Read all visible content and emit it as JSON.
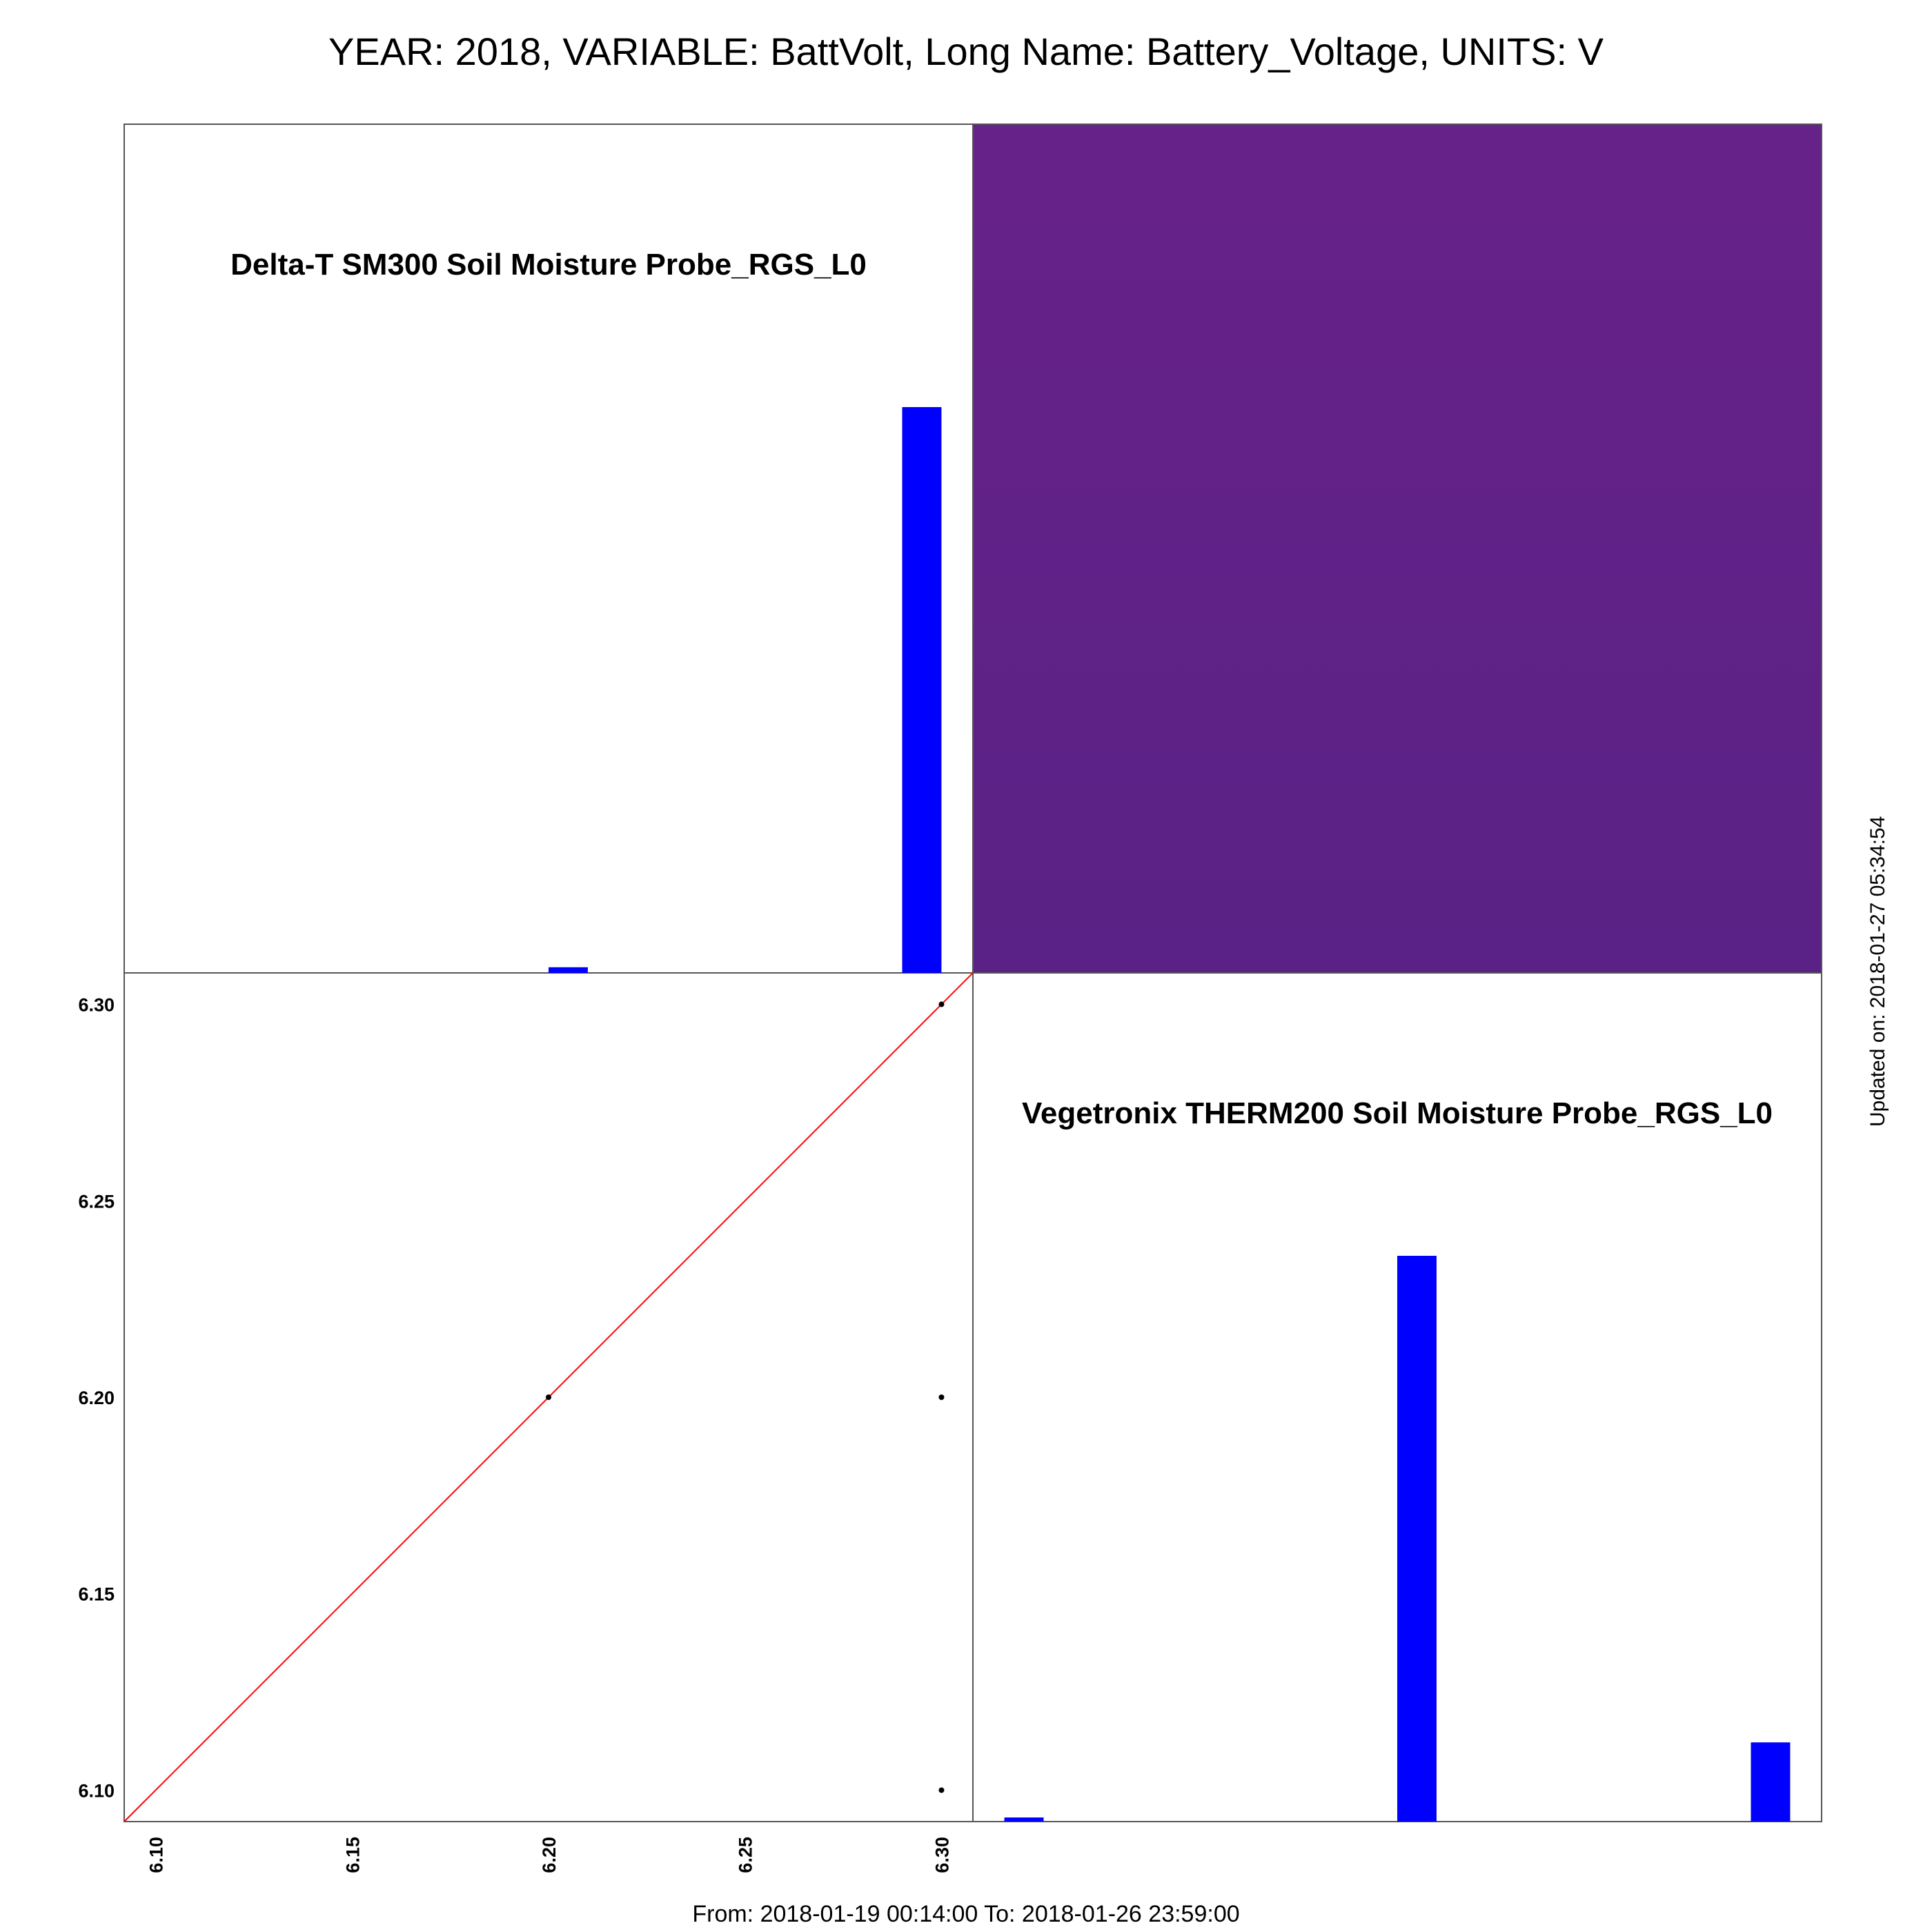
{
  "title": "YEAR: 2018, VARIABLE: BattVolt, Long Name: Battery_Voltage, UNITS: V",
  "footer": "From: 2018-01-19 00:14:00 To: 2018-01-26 23:59:00",
  "updated": "Updated on: 2018-01-27 05:34:54",
  "colors": {
    "bar": "#0000ff",
    "identity_line": "#ff0000",
    "point": "#000000",
    "correlation_tile": "#63218a"
  },
  "chart_data": [
    {
      "type": "bar",
      "panel": "histogram",
      "title": "Delta-T SM300 Soil Moisture Probe_RGS_L0",
      "x_range": [
        6.092,
        6.308
      ],
      "bins": [
        {
          "x0": 6.2,
          "x1": 6.21,
          "value": 0.01
        },
        {
          "x0": 6.29,
          "x1": 6.3,
          "value": 1.0
        }
      ]
    },
    {
      "type": "heatmap",
      "panel": "correlation",
      "color": "#63218a"
    },
    {
      "type": "scatter",
      "panel": "scatter",
      "x_range": [
        6.092,
        6.308
      ],
      "y_range": [
        6.092,
        6.308
      ],
      "x_ticks": [
        "6.10",
        "6.15",
        "6.20",
        "6.25",
        "6.30"
      ],
      "y_ticks": [
        "6.10",
        "6.15",
        "6.20",
        "6.25",
        "6.30"
      ],
      "points": [
        {
          "x": 6.2,
          "y": 6.2
        },
        {
          "x": 6.3,
          "y": 6.3
        },
        {
          "x": 6.3,
          "y": 6.2
        },
        {
          "x": 6.3,
          "y": 6.1
        }
      ],
      "reference_line": "y = x"
    },
    {
      "type": "bar",
      "panel": "histogram",
      "title": "Vegetronix THERM200 Soil Moisture Probe_RGS_L0",
      "x_range": [
        6.092,
        6.308
      ],
      "bins": [
        {
          "x0": 6.1,
          "x1": 6.11,
          "value": 0.005
        },
        {
          "x0": 6.2,
          "x1": 6.21,
          "value": 1.0
        },
        {
          "x0": 6.29,
          "x1": 6.3,
          "value": 0.14
        }
      ]
    }
  ]
}
